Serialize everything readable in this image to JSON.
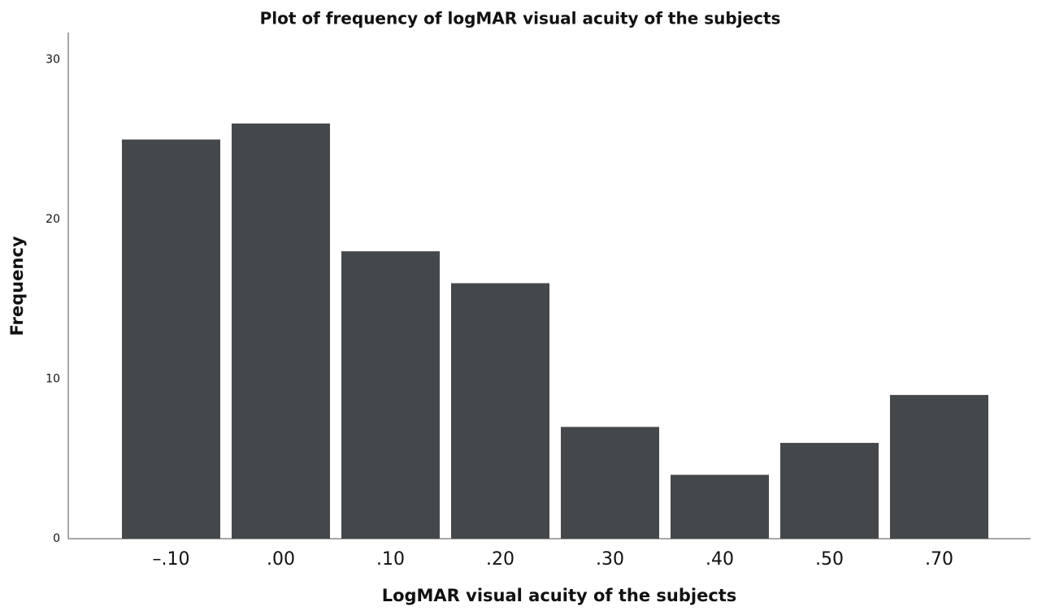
{
  "chart_data": {
    "type": "bar",
    "title": "Plot of frequency of logMAR visual acuity of the subjects",
    "x_label": "LogMAR visual acuity of the subjects",
    "y_label": "Frequency",
    "categories": [
      "–.10",
      ".00",
      ".10",
      ".20",
      ".30",
      ".40",
      ".50",
      ".70"
    ],
    "values": [
      25,
      26,
      18,
      16,
      7,
      4,
      6,
      9
    ],
    "color": "#45484b",
    "ylim": [
      0,
      31.7
    ],
    "yticks": [
      0,
      10,
      20,
      30
    ],
    "grid": false
  }
}
